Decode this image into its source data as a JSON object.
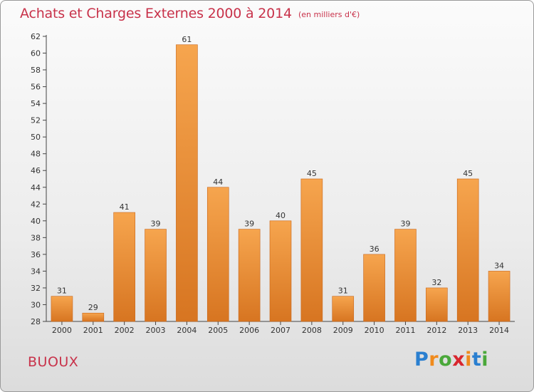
{
  "header": {
    "title": "Achats et Charges Externes 2000 à 2014",
    "unit": "(en milliers d'€)"
  },
  "footer": {
    "commune": "BUOUX",
    "logo": {
      "letters": [
        "P",
        "r",
        "o",
        "x",
        "i",
        "t",
        "i"
      ],
      "colors": [
        "#2a7fd0",
        "#f08a1c",
        "#4aa83a",
        "#d8262e",
        "#f08a1c",
        "#2a7fd0",
        "#4aa83a"
      ]
    }
  },
  "chart_data": {
    "type": "bar",
    "title": "Achats et Charges Externes 2000 à 2014",
    "categories": [
      "2000",
      "2001",
      "2002",
      "2003",
      "2004",
      "2005",
      "2006",
      "2007",
      "2008",
      "2009",
      "2010",
      "2011",
      "2012",
      "2013",
      "2014"
    ],
    "values": [
      31,
      29,
      41,
      39,
      61,
      44,
      39,
      40,
      45,
      31,
      36,
      39,
      32,
      45,
      34
    ],
    "ylim": [
      28,
      62
    ],
    "yticks": [
      28,
      30,
      32,
      34,
      36,
      38,
      40,
      42,
      44,
      46,
      48,
      50,
      52,
      54,
      56,
      58,
      60,
      62
    ],
    "grid": false,
    "legend": "none",
    "colors": {
      "bar_light": "#f6a54e",
      "bar_dark": "#d77521",
      "bar_edge": "#c9661a",
      "axis": "#444444",
      "text": "#333333"
    }
  }
}
